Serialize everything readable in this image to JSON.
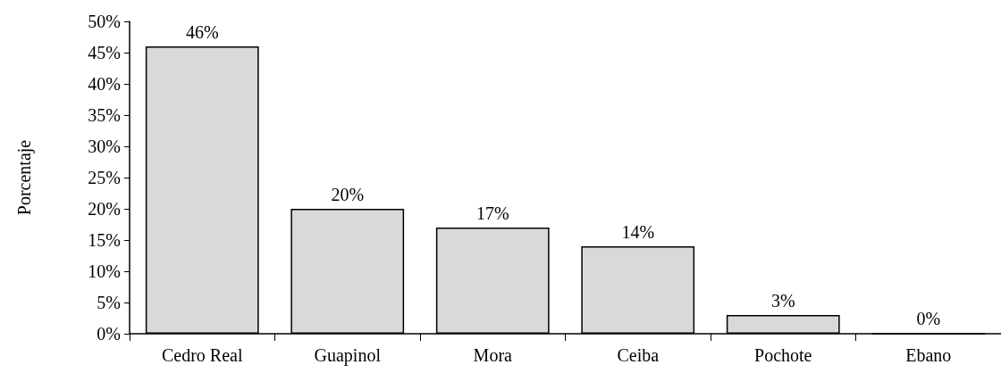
{
  "chart_data": {
    "type": "bar",
    "ylabel": "Porcentaje",
    "categories": [
      "Cedro Real",
      "Guapinol",
      "Mora",
      "Ceiba",
      "Pochote",
      "Ebano"
    ],
    "values": [
      46,
      20,
      17,
      14,
      3,
      0
    ],
    "value_labels": [
      "46%",
      "20%",
      "17%",
      "14%",
      "3%",
      "0%"
    ],
    "color": "#d9d9d9",
    "ylim": [
      0,
      50
    ],
    "yticks": [
      {
        "value": 0,
        "label": "0%"
      },
      {
        "value": 5,
        "label": "5%"
      },
      {
        "value": 10,
        "label": "10%"
      },
      {
        "value": 15,
        "label": "15%"
      },
      {
        "value": 20,
        "label": "20%"
      },
      {
        "value": 25,
        "label": "25%"
      },
      {
        "value": 30,
        "label": "30%"
      },
      {
        "value": 35,
        "label": "35%"
      },
      {
        "value": 40,
        "label": "40%"
      },
      {
        "value": 45,
        "label": "45%"
      },
      {
        "value": 50,
        "label": "50%"
      }
    ],
    "grid": false
  }
}
